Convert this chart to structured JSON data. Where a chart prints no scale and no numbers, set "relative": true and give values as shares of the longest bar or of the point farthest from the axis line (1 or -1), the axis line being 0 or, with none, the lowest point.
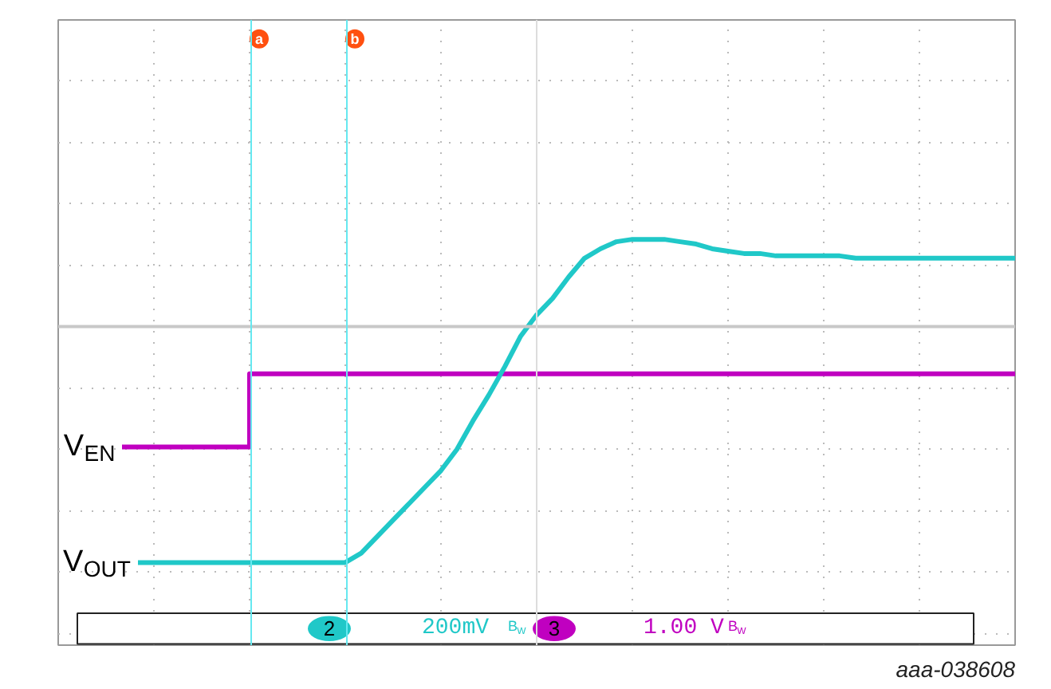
{
  "chart_data": {
    "type": "line",
    "relative": true,
    "grid": true,
    "legend": false,
    "categories": [
      null,
      null,
      null,
      null,
      null,
      null,
      null,
      null,
      null,
      null,
      null,
      null,
      null,
      null,
      null,
      null,
      null,
      null,
      null,
      null,
      null,
      null,
      null,
      null,
      null,
      null,
      null,
      null,
      null,
      null,
      null,
      null,
      null,
      null,
      null,
      null,
      null,
      null,
      null,
      null,
      null,
      null,
      null,
      null,
      null,
      null,
      null,
      null,
      null,
      null,
      null,
      null,
      null,
      null,
      null,
      null,
      null,
      null,
      null,
      null,
      null
    ],
    "series": [
      {
        "name": "V$_{EN}$",
        "type": "step",
        "color": "#c000c0",
        "values": [
          null,
          null,
          null,
          null,
          -0.51,
          -0.51,
          -0.51,
          -0.51,
          -0.51,
          -0.51,
          -0.51,
          -0.51,
          -0.51,
          -0.2,
          -0.2,
          -0.2,
          -0.2,
          -0.2,
          -0.2,
          -0.2,
          -0.2,
          -0.2,
          -0.2,
          -0.2,
          -0.2,
          -0.2,
          -0.2,
          -0.2,
          -0.2,
          -0.2,
          -0.2,
          -0.2,
          -0.2,
          -0.2,
          -0.2,
          -0.2,
          -0.2,
          -0.2,
          -0.2,
          -0.2,
          -0.2,
          -0.2,
          -0.2,
          -0.2,
          -0.2,
          -0.2,
          -0.2,
          -0.2,
          -0.2,
          -0.2,
          -0.2,
          -0.2,
          -0.2,
          -0.2,
          -0.2,
          -0.2,
          -0.2,
          -0.2,
          -0.2,
          -0.2,
          -0.2
        ]
      },
      {
        "name": "V$_{OUT}$",
        "color": "#20c8c8",
        "values": [
          null,
          null,
          null,
          null,
          null,
          -1,
          -1,
          -1,
          -1,
          -1,
          -1,
          -1,
          -1,
          -1,
          -1,
          -1,
          -1,
          -1,
          -1,
          -0.96,
          -0.89,
          -0.82,
          -0.75,
          -0.68,
          -0.61,
          -0.52,
          -0.4,
          -0.29,
          -0.17,
          -0.04,
          0.05,
          0.12,
          0.21,
          0.29,
          0.33,
          0.36,
          0.37,
          0.37,
          0.37,
          0.36,
          0.35,
          0.33,
          0.32,
          0.31,
          0.31,
          0.3,
          0.3,
          0.3,
          0.3,
          0.3,
          0.29,
          0.29,
          0.29,
          0.29,
          0.29,
          0.29,
          0.29,
          0.29,
          0.29,
          0.29,
          0.29
        ]
      }
    ],
    "annotations": [
      "a",
      "b",
      "2",
      "200mV",
      "B$_{W}$",
      "3",
      "1.00 V",
      "B$_{W}$",
      "aaa-038608"
    ]
  }
}
